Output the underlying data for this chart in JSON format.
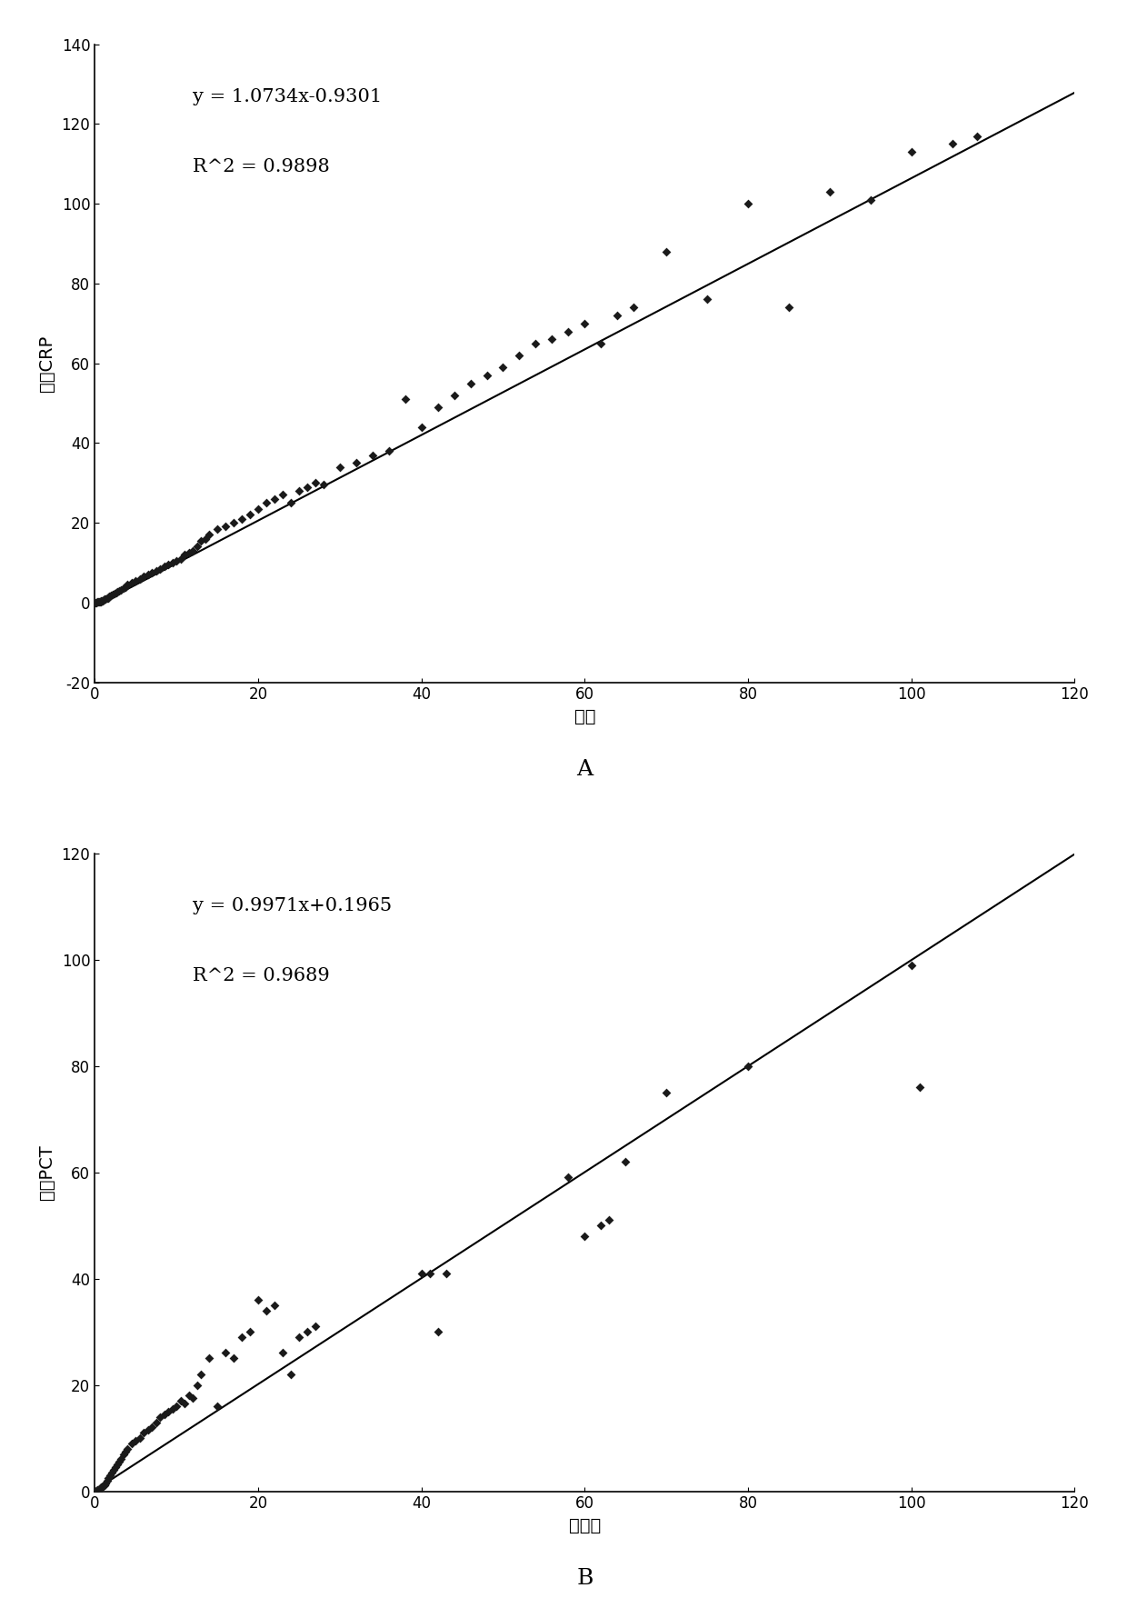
{
  "chart_A": {
    "xlabel": "德灵",
    "ylabel": "二联CRP",
    "equation": "y = 1.0734x-0.9301",
    "r2": "R²2 = 0.9898",
    "r2_caret": "R^2 = 0.9898",
    "slope": 1.0734,
    "intercept": -0.9301,
    "xlim": [
      0,
      120
    ],
    "ylim": [
      -20,
      140
    ],
    "xticks": [
      0,
      20,
      40,
      60,
      80,
      100,
      120
    ],
    "yticks": [
      -20,
      0,
      20,
      40,
      60,
      80,
      100,
      120,
      140
    ],
    "label": "A",
    "scatter_x": [
      0.1,
      0.2,
      0.3,
      0.4,
      0.5,
      0.6,
      0.7,
      0.8,
      0.9,
      1.0,
      1.1,
      1.2,
      1.3,
      1.5,
      1.6,
      1.8,
      2.0,
      2.2,
      2.4,
      2.6,
      2.8,
      3.0,
      3.2,
      3.5,
      3.8,
      4.0,
      4.5,
      5.0,
      5.5,
      6.0,
      6.5,
      7.0,
      7.5,
      8.0,
      8.5,
      9.0,
      9.5,
      10.0,
      10.5,
      11.0,
      11.5,
      12.0,
      12.5,
      13.0,
      13.5,
      14.0,
      15.0,
      16.0,
      17.0,
      18.0,
      19.0,
      20.0,
      21.0,
      22.0,
      23.0,
      24.0,
      25.0,
      26.0,
      27.0,
      28.0,
      30.0,
      32.0,
      34.0,
      36.0,
      38.0,
      40.0,
      42.0,
      44.0,
      46.0,
      48.0,
      50.0,
      52.0,
      54.0,
      56.0,
      58.0,
      60.0,
      62.0,
      64.0,
      66.0,
      70.0,
      75.0,
      80.0,
      85.0,
      90.0,
      95.0,
      100.0,
      105.0,
      108.0
    ],
    "scatter_y": [
      0.0,
      0.0,
      0.1,
      0.1,
      0.2,
      0.2,
      0.3,
      0.4,
      0.5,
      0.5,
      0.6,
      0.8,
      0.9,
      1.0,
      1.2,
      1.5,
      1.8,
      2.0,
      2.2,
      2.5,
      2.8,
      3.0,
      3.2,
      3.5,
      3.8,
      4.5,
      5.0,
      5.5,
      6.0,
      6.5,
      7.0,
      7.5,
      8.0,
      8.5,
      9.0,
      9.5,
      10.0,
      10.5,
      11.0,
      12.0,
      12.5,
      13.0,
      14.0,
      15.5,
      16.0,
      17.0,
      18.5,
      19.0,
      20.0,
      21.0,
      22.0,
      23.5,
      25.0,
      26.0,
      27.0,
      25.0,
      28.0,
      29.0,
      30.0,
      29.5,
      34.0,
      35.0,
      37.0,
      38.0,
      51.0,
      44.0,
      49.0,
      52.0,
      55.0,
      57.0,
      59.0,
      62.0,
      65.0,
      66.0,
      68.0,
      70.0,
      65.0,
      72.0,
      74.0,
      88.0,
      76.0,
      100.0,
      74.0,
      103.0,
      101.0,
      113.0,
      115.0,
      117.0
    ]
  },
  "chart_B": {
    "xlabel": "梅里埃",
    "ylabel": "二联PCT",
    "equation": "y = 0.9971x+0.1965",
    "r2_caret": "R^2 = 0.9689",
    "slope": 0.9971,
    "intercept": 0.1965,
    "xlim": [
      0,
      120
    ],
    "ylim": [
      0,
      120
    ],
    "xticks": [
      0,
      20,
      40,
      60,
      80,
      100,
      120
    ],
    "yticks": [
      0,
      20,
      40,
      60,
      80,
      100,
      120
    ],
    "label": "B",
    "scatter_x": [
      0.1,
      0.2,
      0.3,
      0.4,
      0.5,
      0.6,
      0.7,
      0.8,
      0.9,
      1.0,
      1.1,
      1.2,
      1.3,
      1.5,
      1.7,
      1.9,
      2.1,
      2.3,
      2.5,
      2.8,
      3.0,
      3.2,
      3.5,
      3.8,
      4.0,
      4.5,
      5.0,
      5.5,
      6.0,
      6.5,
      7.0,
      7.5,
      8.0,
      8.5,
      9.0,
      9.5,
      10.0,
      10.5,
      11.0,
      11.5,
      12.0,
      12.5,
      13.0,
      14.0,
      15.0,
      16.0,
      17.0,
      18.0,
      19.0,
      20.0,
      21.0,
      22.0,
      23.0,
      24.0,
      25.0,
      26.0,
      27.0,
      40.0,
      41.0,
      42.0,
      43.0,
      58.0,
      60.0,
      62.0,
      63.0,
      65.0,
      70.0,
      80.0,
      100.0,
      101.0
    ],
    "scatter_y": [
      0.0,
      0.1,
      0.2,
      0.2,
      0.3,
      0.5,
      0.6,
      0.7,
      0.8,
      1.0,
      1.1,
      1.2,
      1.5,
      2.0,
      2.5,
      3.0,
      3.5,
      4.0,
      4.5,
      5.0,
      5.5,
      6.0,
      7.0,
      7.5,
      8.0,
      9.0,
      9.5,
      10.0,
      11.0,
      11.5,
      12.0,
      13.0,
      14.0,
      14.5,
      15.0,
      15.5,
      16.0,
      17.0,
      16.5,
      18.0,
      17.5,
      20.0,
      22.0,
      25.0,
      16.0,
      26.0,
      25.0,
      29.0,
      30.0,
      36.0,
      34.0,
      35.0,
      26.0,
      22.0,
      29.0,
      30.0,
      31.0,
      41.0,
      41.0,
      30.0,
      41.0,
      59.0,
      48.0,
      50.0,
      51.0,
      62.0,
      75.0,
      80.0,
      99.0,
      76.0
    ]
  },
  "figure_bg": "#ffffff",
  "marker_color": "#1a1a1a",
  "marker_style": "D",
  "marker_size": 5,
  "line_color": "#000000",
  "annotation_fontsize": 15,
  "axis_label_fontsize": 14,
  "tick_fontsize": 12,
  "label_fontsize": 18
}
